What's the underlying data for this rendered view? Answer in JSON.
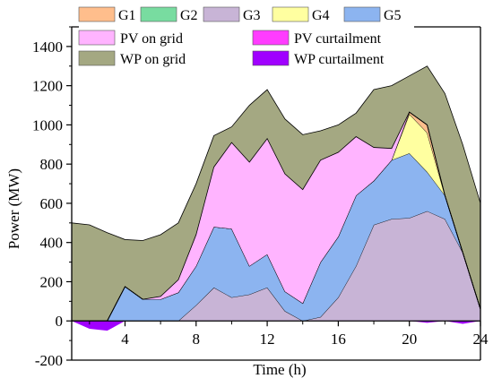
{
  "chart_data": {
    "type": "area",
    "title": "",
    "xlabel": "Time (h)",
    "ylabel": "Power (MW)",
    "xlim": [
      1,
      24
    ],
    "ylim": [
      -200,
      1500
    ],
    "xticks": [
      4,
      8,
      12,
      16,
      20,
      24
    ],
    "yticks": [
      -200,
      0,
      200,
      400,
      600,
      800,
      1000,
      1200,
      1400
    ],
    "grid": false,
    "legend_position": "top",
    "x": [
      1,
      2,
      3,
      4,
      5,
      6,
      7,
      8,
      9,
      10,
      11,
      12,
      13,
      14,
      15,
      16,
      17,
      18,
      19,
      20,
      21,
      22,
      23,
      24
    ],
    "series": [
      {
        "name": "G3",
        "color": "#c8b4d6",
        "values": [
          0,
          0,
          0,
          0,
          0,
          0,
          0,
          80,
          170,
          120,
          135,
          170,
          50,
          0,
          20,
          120,
          280,
          490,
          520,
          525,
          560,
          520,
          350,
          60
        ]
      },
      {
        "name": "G5",
        "color": "#8cb4f0",
        "values": [
          0,
          0,
          0,
          175,
          110,
          110,
          145,
          200,
          310,
          350,
          145,
          170,
          100,
          90,
          280,
          310,
          360,
          225,
          300,
          330,
          200,
          120,
          0,
          0
        ]
      },
      {
        "name": "G4",
        "color": "#ffffa0",
        "values": [
          0,
          0,
          0,
          0,
          0,
          0,
          0,
          0,
          0,
          0,
          0,
          0,
          0,
          0,
          0,
          0,
          0,
          0,
          0,
          200,
          200,
          0,
          0,
          0
        ]
      },
      {
        "name": "G1",
        "color": "#ffbe8c",
        "values": [
          0,
          0,
          0,
          0,
          0,
          0,
          0,
          0,
          0,
          0,
          0,
          0,
          0,
          0,
          0,
          0,
          0,
          0,
          0,
          10,
          40,
          0,
          0,
          0
        ]
      },
      {
        "name": "G2",
        "color": "#78dca0",
        "values": [
          0,
          0,
          0,
          0,
          0,
          0,
          0,
          0,
          0,
          0,
          0,
          0,
          0,
          0,
          0,
          0,
          0,
          0,
          0,
          0,
          0,
          0,
          0,
          0
        ]
      },
      {
        "name": "PV on grid",
        "color": "#ffb4ff",
        "values": [
          0,
          0,
          0,
          0,
          0,
          15,
          65,
          160,
          305,
          440,
          530,
          590,
          600,
          580,
          520,
          430,
          300,
          170,
          60,
          0,
          0,
          0,
          0,
          0
        ]
      },
      {
        "name": "WP on grid",
        "color": "#a4a882",
        "values": [
          500,
          490,
          450,
          415,
          410,
          440,
          500,
          700,
          945,
          990,
          1100,
          1180,
          1030,
          950,
          970,
          1000,
          1060,
          1180,
          1200,
          1250,
          1300,
          1160,
          900,
          600
        ]
      },
      {
        "name": "PV curtailment",
        "color": "#ff3cff",
        "values": [
          0,
          0,
          0,
          0,
          0,
          0,
          0,
          0,
          0,
          0,
          0,
          0,
          0,
          0,
          0,
          0,
          0,
          0,
          0,
          0,
          0,
          0,
          0,
          0
        ]
      },
      {
        "name": "WP curtailment",
        "color": "#a000ff",
        "values": [
          0,
          -40,
          -50,
          0,
          0,
          0,
          0,
          0,
          0,
          0,
          0,
          0,
          0,
          0,
          0,
          0,
          0,
          0,
          0,
          0,
          -10,
          0,
          -15,
          0
        ]
      }
    ]
  }
}
